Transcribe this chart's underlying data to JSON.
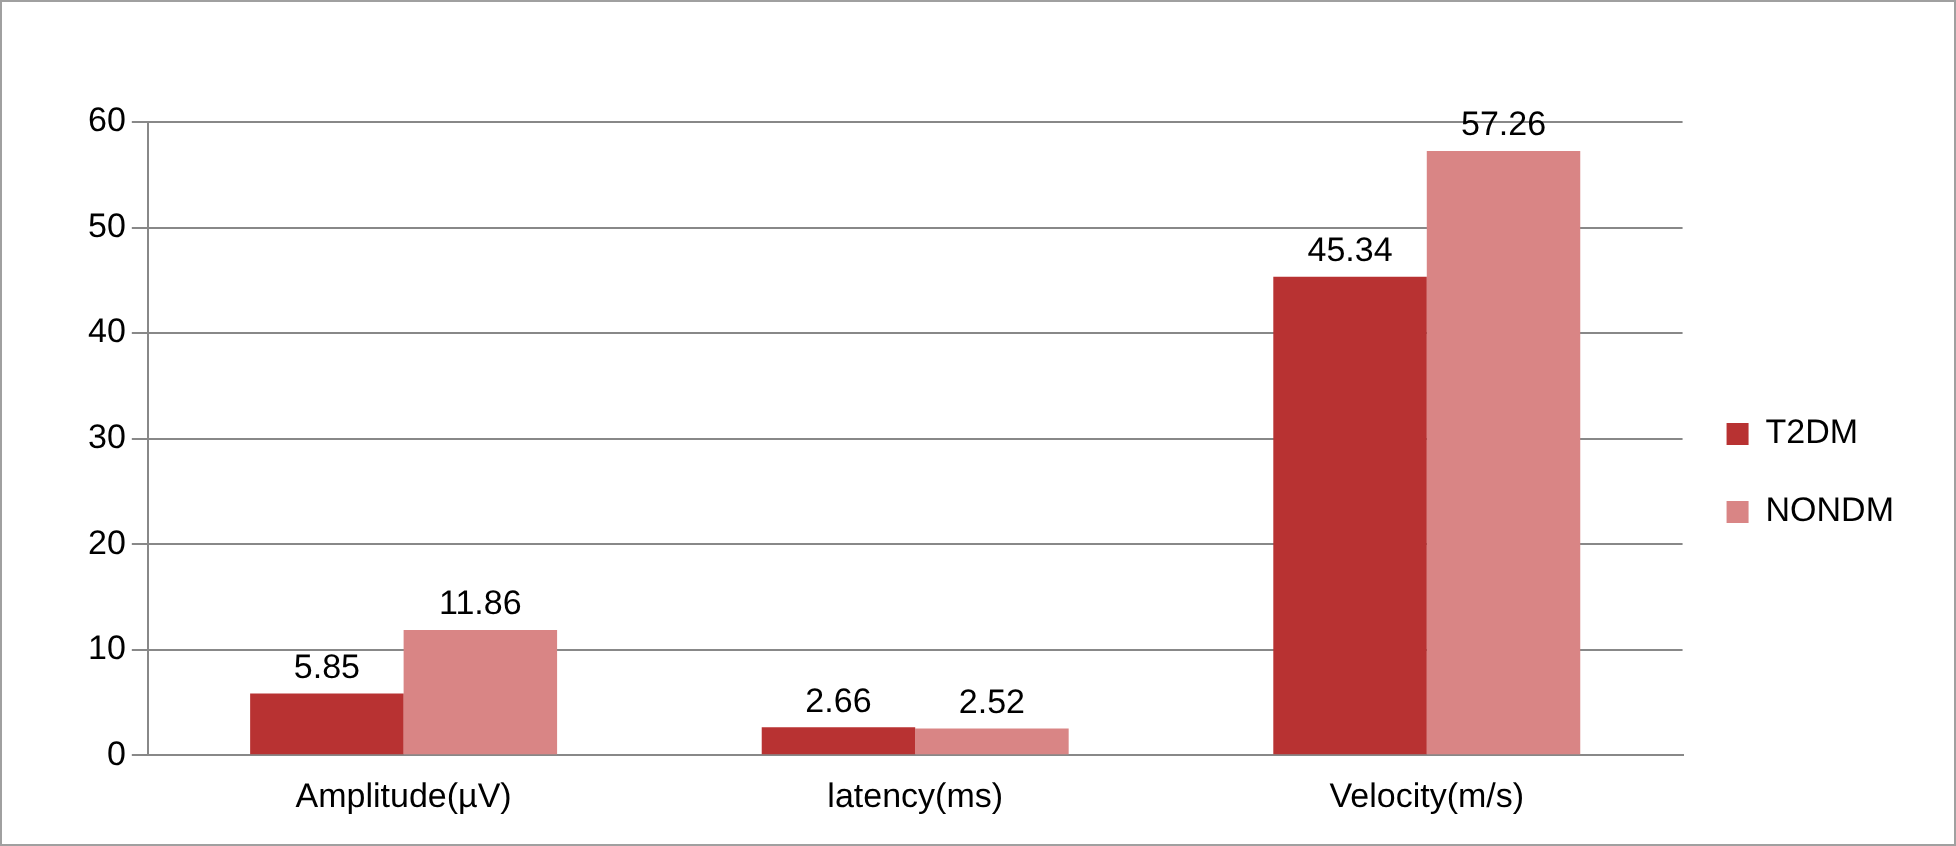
{
  "chart_data": {
    "type": "bar",
    "categories": [
      "Amplitude(µV)",
      "latency(ms)",
      "Velocity(m/s)"
    ],
    "series": [
      {
        "name": "T2DM",
        "color": "#b83232",
        "values": [
          5.85,
          2.66,
          45.34
        ]
      },
      {
        "name": "NONDM",
        "color": "#d98585",
        "values": [
          11.86,
          2.52,
          57.26
        ]
      }
    ],
    "ylim": [
      0,
      60
    ],
    "yticks": [
      0,
      10,
      20,
      30,
      40,
      50,
      60
    ],
    "grid": "y",
    "legend": "right",
    "data_labels": true
  }
}
